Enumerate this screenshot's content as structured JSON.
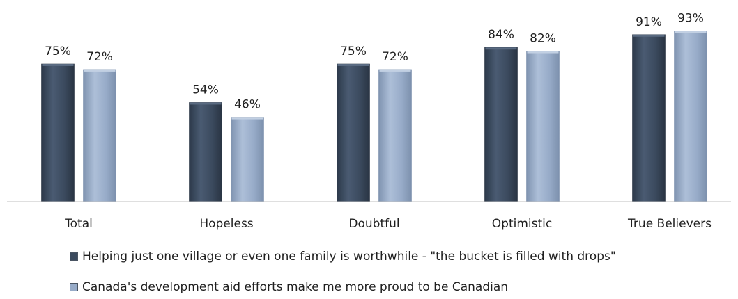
{
  "chart_data": {
    "type": "bar",
    "title": "",
    "xlabel": "",
    "ylabel": "",
    "ylim": [
      0,
      100
    ],
    "grid": false,
    "legend_position": "bottom",
    "categories": [
      "Total",
      "Hopeless",
      "Doubtful",
      "Optimistic",
      "True Believers"
    ],
    "series": [
      {
        "name": "Helping just one village or even one family is worthwhile - \"the bucket is filled with drops\"",
        "values": [
          75,
          54,
          75,
          84,
          91
        ],
        "labels": [
          "75%",
          "54%",
          "75%",
          "84%",
          "91%"
        ],
        "color": "#3b4a5e"
      },
      {
        "name": "Canada's development aid efforts make me more proud to be Canadian",
        "values": [
          72,
          46,
          72,
          82,
          93
        ],
        "labels": [
          "72%",
          "46%",
          "72%",
          "82%",
          "93%"
        ],
        "color": "#97abc8"
      }
    ]
  }
}
